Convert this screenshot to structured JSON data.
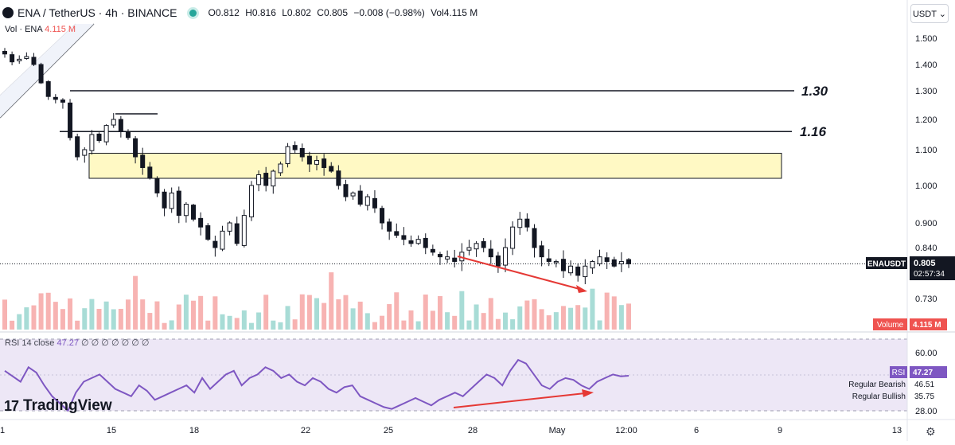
{
  "header": {
    "symbol": "ENA / TetherUS · 4h · BINANCE",
    "open": "O0.812",
    "high": "H0.816",
    "low": "L0.802",
    "close": "C0.805",
    "change": "−0.008 (−0.98%)",
    "volume": "Vol4.115 M"
  },
  "volume_legend": {
    "label": "Vol · ENA",
    "value": "4.115 M"
  },
  "rsi_legend": {
    "label": "RSI 14 close",
    "value": "47.27",
    "extra": "∅ ∅ ∅ ∅ ∅ ∅ ∅"
  },
  "currency_button": "USDT ⌄",
  "logo": {
    "mark": "17",
    "text": "TradingView"
  },
  "colors": {
    "up": "#ffffff",
    "down": "#131722",
    "vol_up": "#26a69a",
    "vol_down": "#ef5350",
    "rsi": "#7e57c2",
    "rsi_band": "#ede7f6",
    "zone": "#fff9c4",
    "divergence": "#e53935"
  },
  "icons": {
    "settings": "gear-icon",
    "symbol_logo": "ena-coin-icon",
    "market_status": "status-dot-icon"
  },
  "chart_data": {
    "type": "candlestick",
    "price_axis_ticks": [
      "1.500",
      "1.400",
      "1.300",
      "1.200",
      "1.100",
      "1.000",
      "0.900",
      "0.840",
      "0.730"
    ],
    "price_axis_values": [
      1.5,
      1.4,
      1.3,
      1.2,
      1.1,
      1.0,
      0.9,
      0.84,
      0.73
    ],
    "x_tick_labels": [
      "1",
      "15",
      "18",
      "22",
      "25",
      "28",
      "May",
      "12:00",
      "6",
      "9",
      "13"
    ],
    "current_price": {
      "label": "ENAUSDT",
      "value": "0.805",
      "countdown": "02:57:34"
    },
    "volume_tag": {
      "label": "Volume",
      "value": "4.115 M"
    },
    "rsi_axis_ticks": [
      "60.00",
      "28.00"
    ],
    "rsi_axis_values": [
      60,
      28
    ],
    "rsi_tag": {
      "label": "RSI",
      "value": "47.27"
    },
    "rsi_markers": [
      {
        "label": "Regular Bearish",
        "value": "46.51"
      },
      {
        "label": "Regular Bullish",
        "value": "35.75"
      }
    ],
    "horizontal_levels": [
      {
        "label": "1.30",
        "value": 1.3
      },
      {
        "label": "1.16",
        "value": 1.16
      }
    ],
    "zone": {
      "from": 1.02,
      "to": 1.09
    },
    "close_path": [
      1.44,
      1.41,
      1.42,
      1.43,
      1.4,
      1.33,
      1.28,
      1.27,
      1.26,
      1.14,
      1.08,
      1.1,
      1.15,
      1.13,
      1.18,
      1.2,
      1.16,
      1.14,
      1.08,
      1.05,
      1.02,
      0.98,
      0.94,
      0.98,
      0.92,
      0.95,
      0.91,
      0.89,
      0.86,
      0.84,
      0.88,
      0.9,
      0.85,
      0.92,
      1.0,
      1.03,
      1.0,
      1.04,
      1.06,
      1.11,
      1.1,
      1.08,
      1.06,
      1.07,
      1.05,
      1.04,
      1.0,
      0.97,
      0.98,
      0.95,
      0.97,
      0.94,
      0.9,
      0.88,
      0.87,
      0.86,
      0.85,
      0.86,
      0.84,
      0.83,
      0.82,
      0.82,
      0.81,
      0.83,
      0.84,
      0.85,
      0.84,
      0.82,
      0.8,
      0.84,
      0.89,
      0.91,
      0.89,
      0.84,
      0.82,
      0.81,
      0.81,
      0.79,
      0.8,
      0.78,
      0.8,
      0.81,
      0.82,
      0.81,
      0.8,
      0.81,
      0.805
    ],
    "rsi_path": [
      50,
      47,
      44,
      52,
      49,
      42,
      36,
      32,
      28,
      38,
      44,
      46,
      48,
      44,
      40,
      38,
      36,
      42,
      39,
      34,
      36,
      38,
      40,
      42,
      38,
      46,
      40,
      44,
      48,
      50,
      42,
      46,
      48,
      52,
      50,
      46,
      48,
      44,
      42,
      46,
      44,
      40,
      38,
      41,
      42,
      36,
      34,
      32,
      30,
      29,
      31,
      33,
      35,
      33,
      31,
      34,
      36,
      38,
      36,
      40,
      44,
      48,
      46,
      42,
      50,
      56,
      54,
      48,
      42,
      40,
      44,
      46,
      45,
      42,
      40,
      44,
      46,
      48,
      47,
      47.27
    ]
  }
}
